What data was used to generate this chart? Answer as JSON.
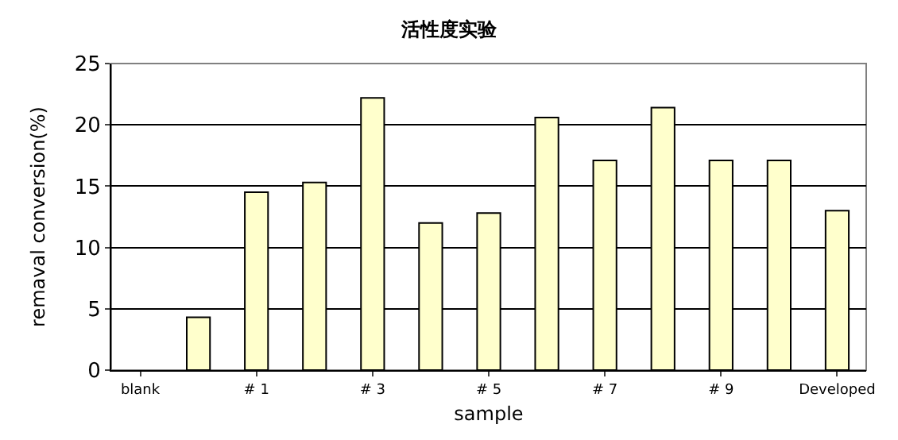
{
  "chart_data": {
    "type": "bar",
    "title": "活性度实验",
    "xlabel": "sample",
    "ylabel": "remaval conversion(%)",
    "categories": [
      "blank",
      null,
      "# 1",
      null,
      "# 3",
      null,
      "# 5",
      null,
      "# 7",
      null,
      "# 9",
      null,
      "Developed"
    ],
    "values": [
      null,
      4.3,
      14.5,
      15.3,
      22.2,
      12.0,
      12.8,
      20.6,
      17.1,
      21.4,
      17.1,
      17.1,
      13.0
    ],
    "color": "#ffffcc",
    "ylim": [
      0,
      25
    ],
    "yticks": [
      0,
      5,
      10,
      15,
      20,
      25
    ],
    "grid": "y"
  }
}
